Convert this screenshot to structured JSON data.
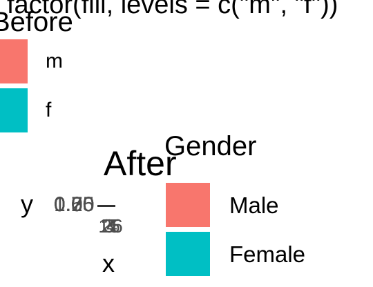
{
  "top_panel": {
    "fill_label": "factor(fill, levels = c(\"m\", \"f\"))",
    "title": "Before",
    "legend_items": [
      {
        "label": "m",
        "color": "#F8766D"
      },
      {
        "label": "f",
        "color": "#00BFC4"
      }
    ]
  },
  "chart_data": {
    "type": "bar",
    "title": "After",
    "xlabel": "x",
    "ylabel": "y",
    "y_ticks": [
      "0.00",
      "0.25",
      "0.50",
      "0.75",
      "1.00"
    ],
    "x_ticks": [
      "1",
      "2",
      "3",
      "4",
      "5",
      "6"
    ],
    "legend": {
      "title": "Gender",
      "placement": "right",
      "items": [
        {
          "label": "Male",
          "color": "#F8766D"
        },
        {
          "label": "Female",
          "color": "#00BFC4"
        }
      ]
    }
  }
}
